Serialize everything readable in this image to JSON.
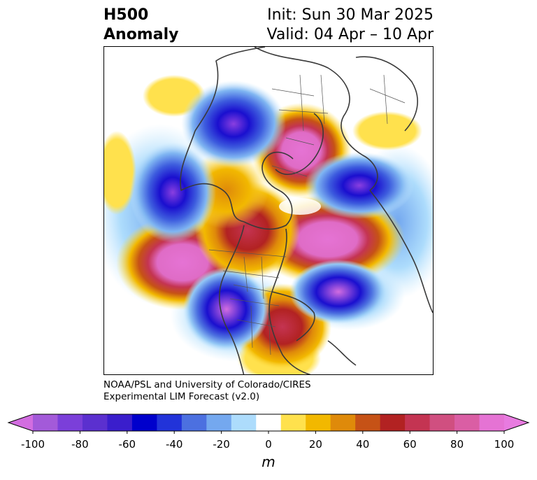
{
  "header": {
    "variable_line1": "H500",
    "variable_line2": "Anomaly",
    "init_line": "Init: Sun 30 Mar 2025",
    "valid_line": "Valid: 04 Apr – 10 Apr"
  },
  "credits": {
    "line1": "NOAA/PSL and University of Colorado/CIRES",
    "line2": "Experimental LIM Forecast (v2.0)"
  },
  "colorbar": {
    "unit": "m",
    "ticks": [
      "-100",
      "-80",
      "-60",
      "-40",
      "-20",
      "0",
      "20",
      "40",
      "60",
      "80",
      "100"
    ],
    "levels": [
      -100,
      -90,
      -80,
      -70,
      -60,
      -50,
      -40,
      -30,
      -20,
      -10,
      10,
      20,
      30,
      40,
      50,
      60,
      70,
      80,
      90,
      100
    ],
    "colors": [
      "#a35ad9",
      "#7b3fd9",
      "#5b30cf",
      "#3a1ecc",
      "#0000cc",
      "#2233d9",
      "#4c70e0",
      "#74a8ef",
      "#addcfc",
      "#ffffff",
      "#ffe14d",
      "#f2b800",
      "#df8a0a",
      "#c65216",
      "#b22222",
      "#c43452",
      "#d04f80",
      "#da5ea4",
      "#e573d4"
    ],
    "low_extend_color": "#d26de0",
    "high_extend_color": "#e87be0"
  },
  "anomalies": [
    {
      "name": "neg-alaska-north",
      "sign": "neg",
      "value": -80
    },
    {
      "name": "neg-north-pacific-west",
      "sign": "neg",
      "value": -80
    },
    {
      "name": "neg-southwest-us",
      "sign": "neg",
      "value": -100
    },
    {
      "name": "neg-north-atlantic",
      "sign": "neg",
      "value": -100
    },
    {
      "name": "neg-siberia-east",
      "sign": "neg",
      "value": -80
    },
    {
      "name": "pos-arctic-center",
      "sign": "pos",
      "value": 100
    },
    {
      "name": "pos-north-pacific",
      "sign": "pos",
      "value": 100
    },
    {
      "name": "pos-eastern-canada",
      "sign": "pos",
      "value": 100
    },
    {
      "name": "pos-southeast-us",
      "sign": "pos",
      "value": 80
    },
    {
      "name": "pos-greenland-ridge",
      "sign": "pos",
      "value": 60
    }
  ]
}
